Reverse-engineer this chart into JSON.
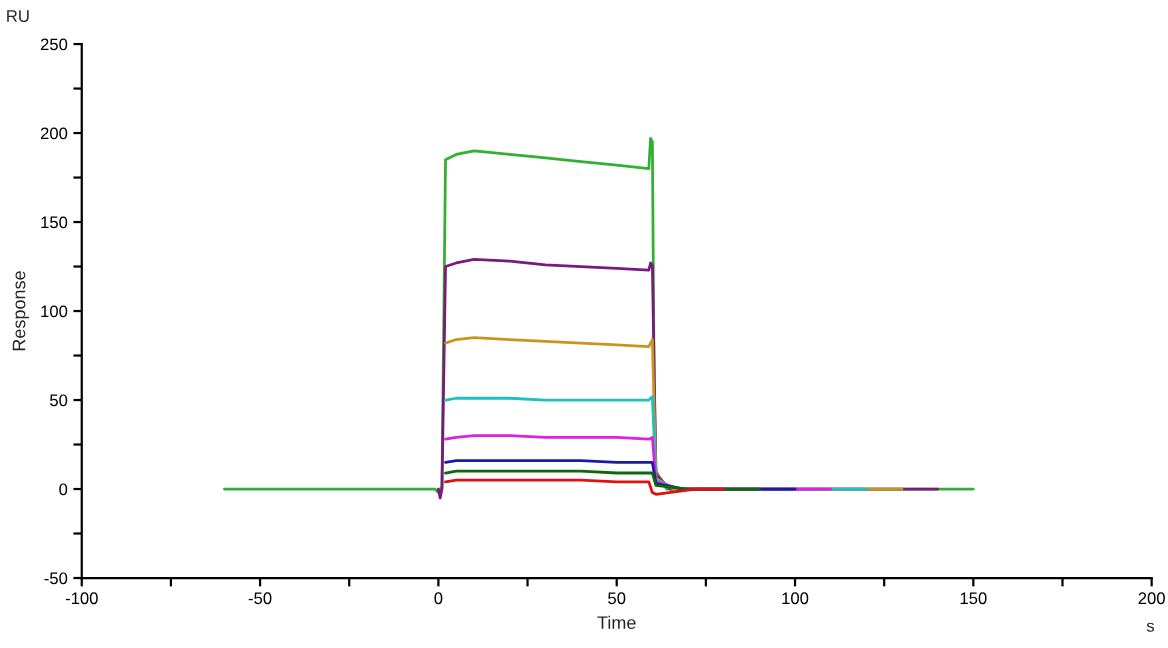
{
  "chart_data": {
    "type": "line",
    "xlabel": "Time",
    "ylabel": "Response",
    "annotations": [
      "RU",
      "s"
    ],
    "xlim": [
      -100,
      200
    ],
    "ylim": [
      -50,
      250
    ],
    "xticks": [
      -100,
      {
        "value": -75,
        "label": null
      },
      -50,
      {
        "value": -25,
        "label": null
      },
      0,
      {
        "value": 25,
        "label": null
      },
      50,
      {
        "value": 75,
        "label": null
      },
      100,
      {
        "value": 125,
        "label": null
      },
      150,
      {
        "value": 175,
        "label": null
      },
      200
    ],
    "yticks": [
      -50,
      {
        "value": -25,
        "label": null
      },
      0,
      {
        "value": 25,
        "label": null
      },
      50,
      {
        "value": 75,
        "label": null
      },
      100,
      {
        "value": 125,
        "label": null
      },
      150,
      {
        "value": 175,
        "label": null
      },
      200,
      {
        "value": 225,
        "label": null
      },
      250
    ],
    "grid": false,
    "legend": false,
    "marker": "none",
    "line_style": "solid",
    "series": [
      {
        "color": "#33b033",
        "x": [
          -60,
          -1,
          0,
          1,
          2,
          5,
          10,
          20,
          30,
          40,
          50,
          59,
          59.5,
          60,
          60.5,
          61,
          64,
          150
        ],
        "values": [
          0,
          0,
          -2,
          1,
          185,
          188,
          190,
          188,
          186,
          184,
          182,
          180,
          197,
          195,
          60,
          10,
          0,
          0
        ]
      },
      {
        "color": "#7a1a7a",
        "x": [
          0,
          0.5,
          1,
          2,
          5,
          10,
          20,
          30,
          40,
          50,
          59,
          59.5,
          60,
          61,
          65,
          140
        ],
        "values": [
          0,
          -5,
          0,
          125,
          127,
          129,
          128,
          126,
          125,
          124,
          123,
          127,
          126,
          8,
          0,
          0
        ]
      },
      {
        "color": "#c8961e",
        "x": [
          2,
          5,
          10,
          20,
          30,
          40,
          50,
          59,
          60,
          61,
          66,
          130
        ],
        "values": [
          82,
          84,
          85,
          84,
          83,
          82,
          81,
          80,
          84,
          6,
          0,
          0
        ]
      },
      {
        "color": "#20c0c0",
        "x": [
          2,
          5,
          10,
          20,
          30,
          40,
          50,
          59,
          60,
          61,
          67,
          120
        ],
        "values": [
          50,
          51,
          51,
          51,
          50,
          50,
          50,
          50,
          52,
          5,
          0,
          0
        ]
      },
      {
        "color": "#e020e0",
        "x": [
          2,
          5,
          10,
          20,
          30,
          40,
          50,
          59,
          60,
          61,
          68,
          110
        ],
        "values": [
          28,
          29,
          30,
          30,
          29,
          29,
          29,
          28,
          29,
          4,
          0,
          0
        ]
      },
      {
        "color": "#1a1aa0",
        "x": [
          2,
          5,
          10,
          20,
          30,
          40,
          50,
          59,
          60,
          61,
          69,
          100
        ],
        "values": [
          15,
          16,
          16,
          16,
          16,
          16,
          15,
          15,
          15,
          3,
          0,
          0
        ]
      },
      {
        "color": "#0a6a0a",
        "x": [
          2,
          5,
          10,
          20,
          30,
          40,
          50,
          59,
          60,
          61,
          70,
          90
        ],
        "values": [
          9,
          10,
          10,
          10,
          10,
          10,
          9,
          9,
          9,
          2,
          0,
          0
        ]
      },
      {
        "color": "#e01010",
        "x": [
          2,
          5,
          10,
          20,
          30,
          40,
          50,
          59,
          60,
          61,
          72,
          80
        ],
        "values": [
          4,
          5,
          5,
          5,
          5,
          5,
          4,
          4,
          -2,
          -3,
          0,
          0
        ]
      }
    ]
  }
}
